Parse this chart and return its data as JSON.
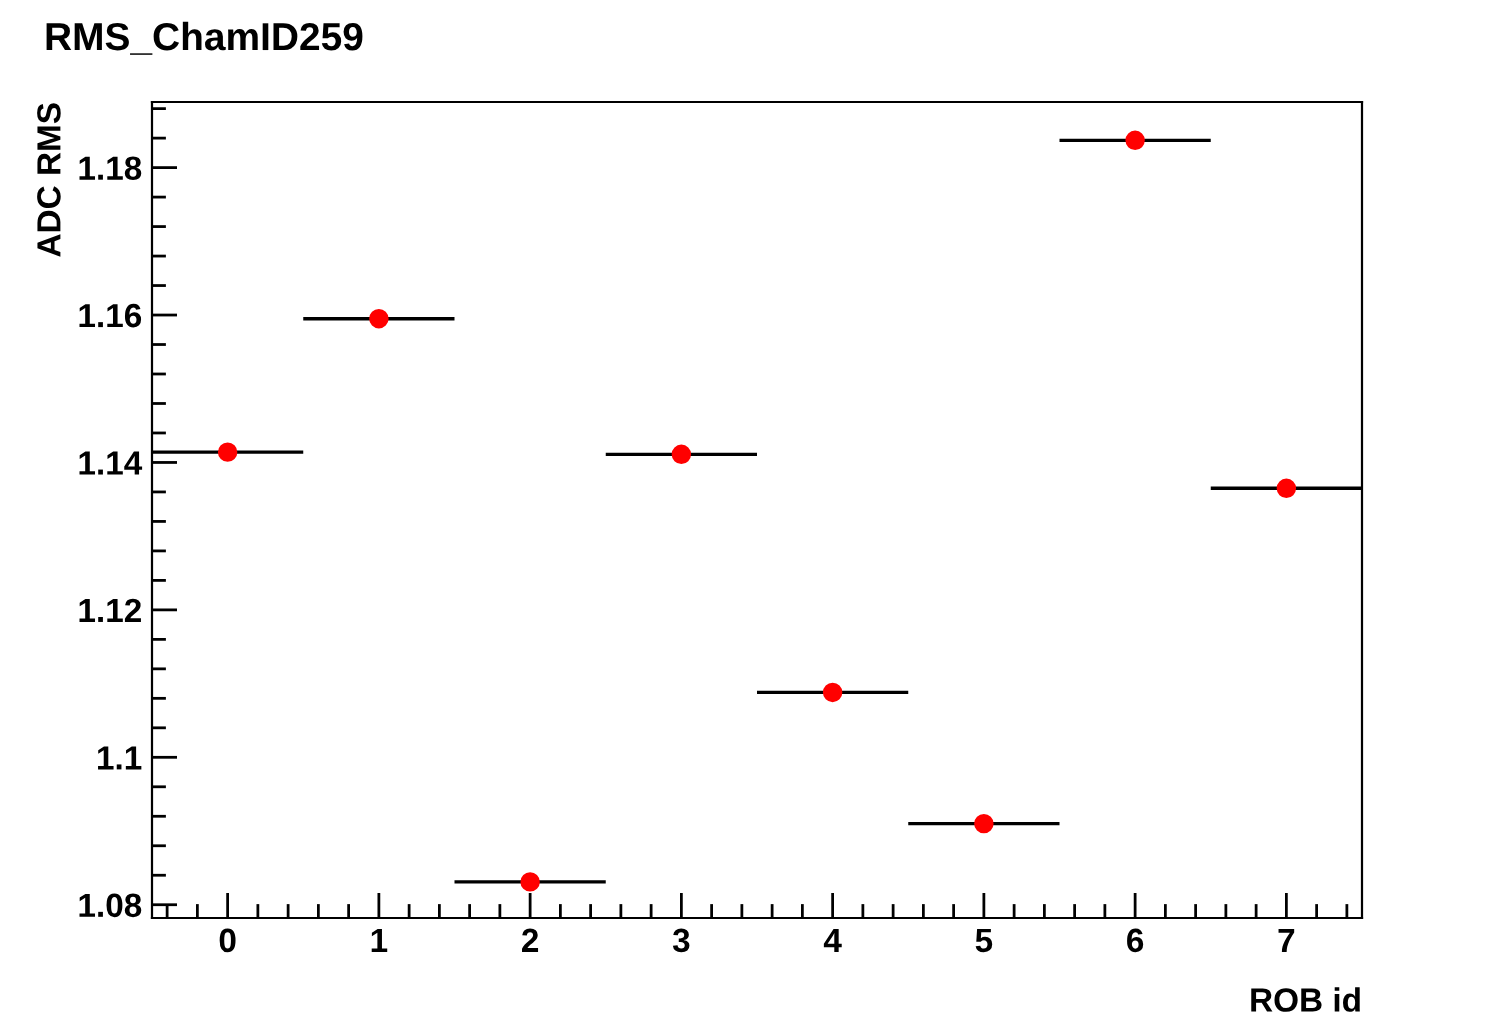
{
  "chart_data": {
    "type": "scatter",
    "title": "RMS_ChamID259",
    "xlabel": "ROB id",
    "ylabel": "ADC RMS",
    "x": [
      0,
      1,
      2,
      3,
      4,
      5,
      6,
      7
    ],
    "series": [
      {
        "color": "#ff0000",
        "values": [
          1.1414,
          1.1595,
          1.0831,
          1.1411,
          1.1088,
          1.091,
          1.1837,
          1.1365
        ],
        "xerrors": [
          0.5,
          0.5,
          0.5,
          0.5,
          0.5,
          0.5,
          0.5,
          0.5
        ]
      }
    ],
    "xlim": [
      -0.5,
      7.5
    ],
    "xticks": [
      0,
      1,
      2,
      3,
      4,
      5,
      6,
      7
    ],
    "ylim": [
      1.0782,
      1.1889
    ],
    "yticks": [
      {
        "value": 1.08,
        "label": "1.08"
      },
      {
        "value": 1.1,
        "label": "1.1"
      },
      {
        "value": 1.12,
        "label": "1.12"
      },
      {
        "value": 1.14,
        "label": "1.14"
      },
      {
        "value": 1.16,
        "label": "1.16"
      },
      {
        "value": 1.18,
        "label": "1.18"
      }
    ],
    "marker": "circle",
    "grid": false,
    "legend": false
  }
}
